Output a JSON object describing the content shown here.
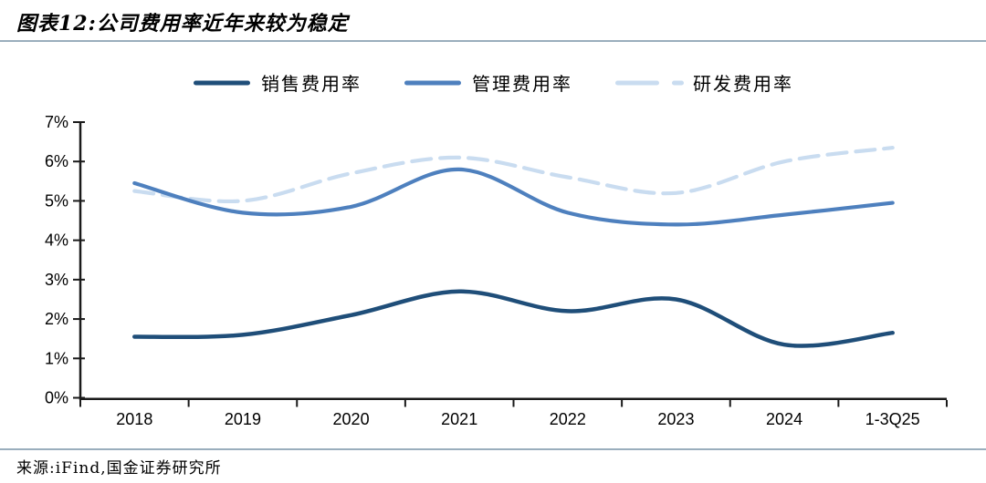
{
  "page": {
    "title": "图表12:公司费用率近年来较为稳定",
    "source": "来源:iFind,国金证券研究所"
  },
  "chart_data": {
    "type": "line",
    "title": "公司费用率近年来较为稳定",
    "categories": [
      "2018",
      "2019",
      "2020",
      "2021",
      "2022",
      "2023",
      "2024",
      "1-3Q25"
    ],
    "series": [
      {
        "key": "sales-expense-ratio",
        "name": "销售费用率",
        "color": "#1f4e79",
        "dash": "solid",
        "values": [
          1.55,
          1.6,
          2.1,
          2.7,
          2.2,
          2.5,
          1.35,
          1.65
        ]
      },
      {
        "key": "management-expense-ratio",
        "name": "管理费用率",
        "color": "#4e80be",
        "dash": "solid",
        "values": [
          5.45,
          4.7,
          4.85,
          5.8,
          4.7,
          4.4,
          4.65,
          4.95
        ]
      },
      {
        "key": "rnd-expense-ratio",
        "name": "研发费用率",
        "color": "#c9dcf0",
        "dash": "dashed",
        "values": [
          5.25,
          5.0,
          5.7,
          6.1,
          5.6,
          5.2,
          6.0,
          6.35
        ]
      }
    ],
    "ylim": [
      0,
      7
    ],
    "y_tick_step": 1,
    "y_tick_labels": [
      "0%",
      "1%",
      "2%",
      "3%",
      "4%",
      "5%",
      "6%",
      "7%"
    ],
    "unit": "%",
    "grid": false,
    "legend_position": "top"
  },
  "style": {
    "axis_color": "#1a1a1a",
    "tick_label_color": "#000000",
    "rule_color": "#9aaebd",
    "background": "#ffffff"
  }
}
